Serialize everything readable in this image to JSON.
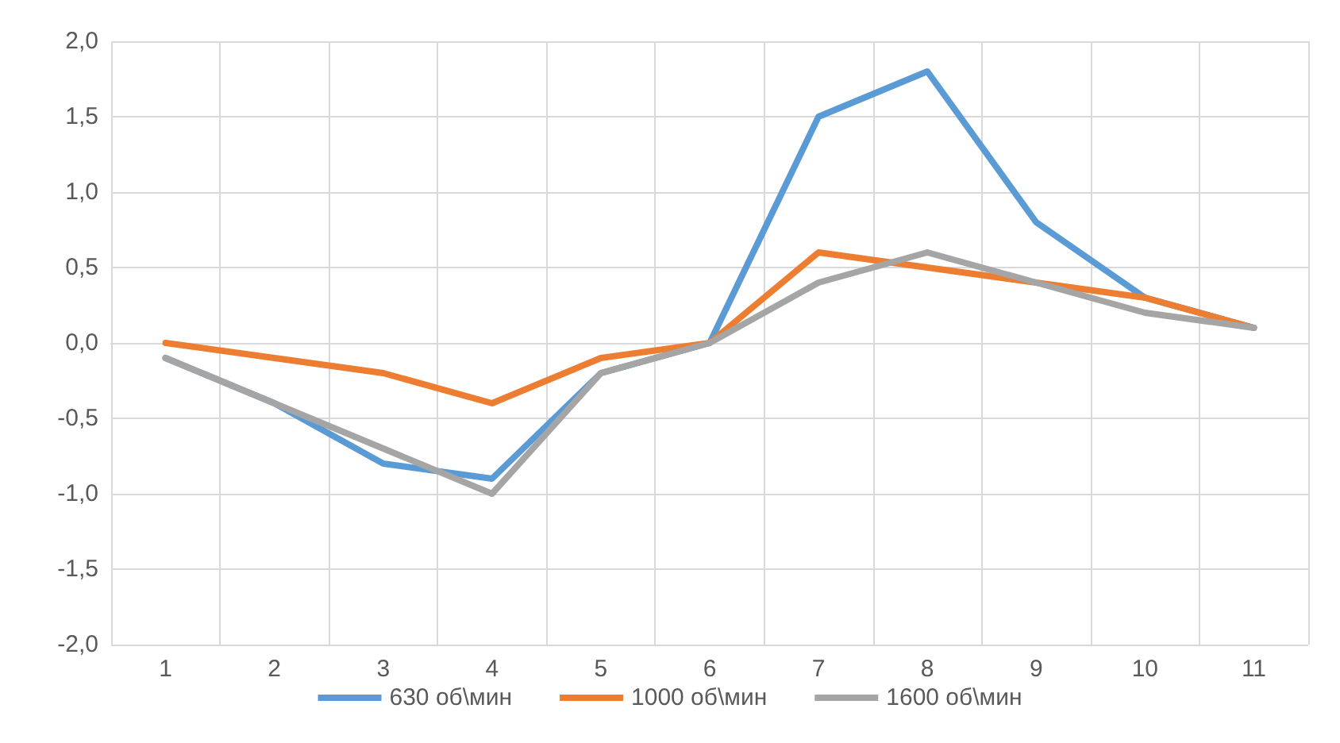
{
  "chart_data": {
    "type": "line",
    "categories": [
      "1",
      "2",
      "3",
      "4",
      "5",
      "6",
      "7",
      "8",
      "9",
      "10",
      "11"
    ],
    "series": [
      {
        "name": "630 об\\мин",
        "color": "#5b9bd5",
        "values": [
          -0.1,
          -0.4,
          -0.8,
          -0.9,
          -0.2,
          0,
          1.5,
          1.8,
          0.8,
          0.3,
          0.1
        ]
      },
      {
        "name": "1000 об\\мин",
        "color": "#ed7d31",
        "values": [
          0,
          -0.1,
          -0.2,
          -0.4,
          -0.1,
          0,
          0.6,
          0.5,
          0.4,
          0.3,
          0.1
        ]
      },
      {
        "name": "1600 об\\мин",
        "color": "#a5a5a5",
        "values": [
          -0.1,
          -0.4,
          -0.7,
          -1.0,
          -0.2,
          0,
          0.4,
          0.6,
          0.4,
          0.2,
          0.1
        ]
      }
    ],
    "ylim": [
      -2,
      2
    ],
    "yticks": [
      {
        "value": -2,
        "label": "-2,0"
      },
      {
        "value": -1.5,
        "label": "-1,5"
      },
      {
        "value": -1,
        "label": "-1,0"
      },
      {
        "value": -0.5,
        "label": "-0,5"
      },
      {
        "value": 0,
        "label": "0,0"
      },
      {
        "value": 0.5,
        "label": "0,5"
      },
      {
        "value": 1,
        "label": "1,0"
      },
      {
        "value": 1.5,
        "label": "1,5"
      },
      {
        "value": 2,
        "label": "2,0"
      }
    ],
    "grid": true,
    "legend": "bottom",
    "marker": "none",
    "line_style": "solid"
  }
}
